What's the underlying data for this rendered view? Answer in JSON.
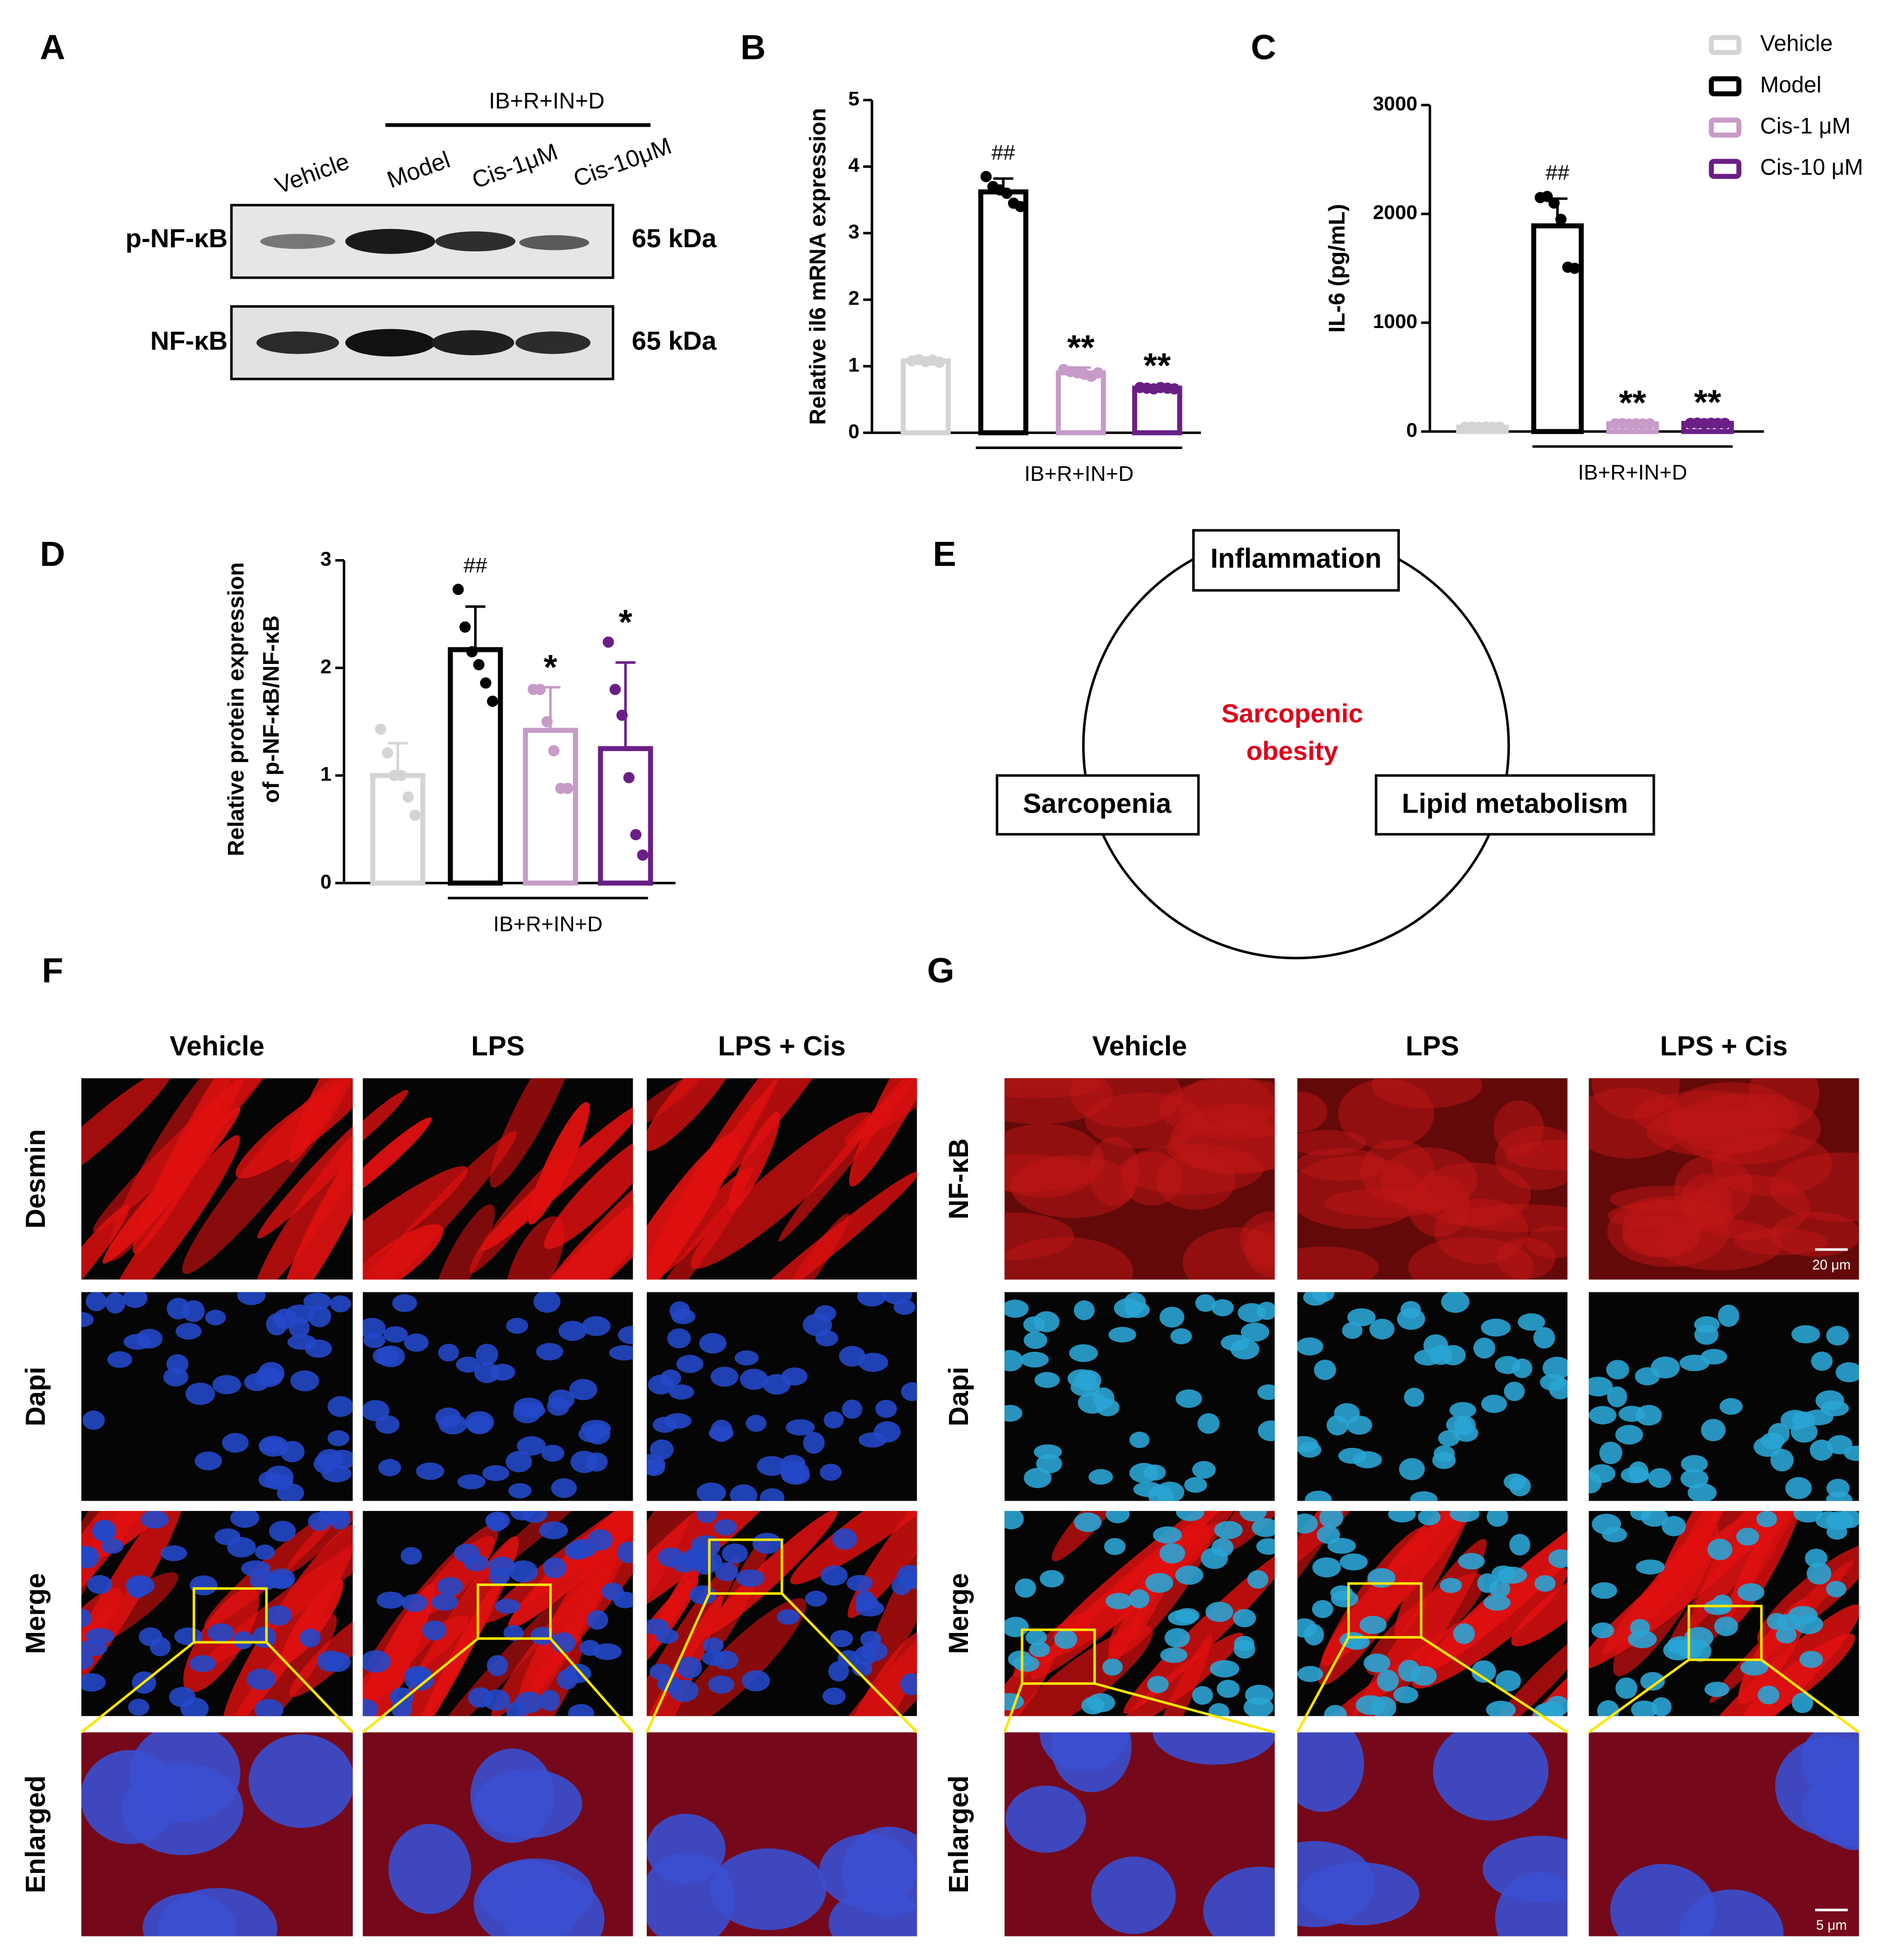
{
  "panel_a": {
    "label": "A",
    "group_label": "IB+R+IN+D",
    "lanes": [
      "Vehicle",
      "Model",
      "Cis-1μM",
      "Cis-10μM"
    ],
    "rows": [
      {
        "protein": "p-NF-κB",
        "size": "65 kDa"
      },
      {
        "protein": "NF-κB",
        "size": "65 kDa"
      }
    ]
  },
  "legend": [
    {
      "name": "Vehicle",
      "color": "#d4d4d4"
    },
    {
      "name": "Model",
      "color": "#000000"
    },
    {
      "name": "Cis-1 μM",
      "color": "#c79ac7"
    },
    {
      "name": "Cis-10 μM",
      "color": "#6a1f86"
    }
  ],
  "chart_data": [
    {
      "type": "bar",
      "panel": "B",
      "y_label": "Relative il6 mRNA expression",
      "group_label": "IB+R+IN+D",
      "values": [
        1.08,
        3.62,
        0.9,
        0.67
      ],
      "errors": [
        0.03,
        0.2,
        0.08,
        0.04
      ],
      "points": [
        [
          1.08,
          1.1,
          1.07,
          1.09,
          1.06
        ],
        [
          3.85,
          3.7,
          3.65,
          3.6,
          3.45,
          3.4
        ],
        [
          0.95,
          0.92,
          0.9,
          0.88,
          0.85,
          0.9
        ],
        [
          0.68,
          0.67,
          0.66,
          0.68,
          0.67,
          0.66
        ]
      ],
      "annotations": [
        null,
        "##",
        "**",
        "**"
      ],
      "ylim": [
        0,
        5
      ],
      "yticks": [
        0,
        1,
        2,
        3,
        4,
        5
      ]
    },
    {
      "type": "bar",
      "panel": "C",
      "y_label": "IL-6 (pg/mL)",
      "group_label": "IB+R+IN+D",
      "values": [
        40,
        1890,
        70,
        75
      ],
      "errors": [
        5,
        250,
        10,
        10
      ],
      "points": [
        [
          40,
          42,
          38,
          41,
          39,
          40
        ],
        [
          2150,
          2160,
          2100,
          1950,
          1510,
          1500
        ],
        [
          70,
          72,
          68,
          71,
          69,
          70
        ],
        [
          75,
          77,
          73,
          76,
          74,
          75
        ]
      ],
      "annotations": [
        null,
        "##",
        "**",
        "**"
      ],
      "ylim": [
        0,
        3000
      ],
      "yticks": [
        0,
        1000,
        2000,
        3000
      ]
    },
    {
      "type": "bar",
      "panel": "D",
      "y_label": [
        "Relative protein expression",
        "of p-NF-κB/NF-κB"
      ],
      "group_label": "IB+R+IN+D",
      "values": [
        1.0,
        2.17,
        1.42,
        1.25
      ],
      "errors": [
        0.3,
        0.4,
        0.4,
        0.8
      ],
      "points": [
        [
          1.43,
          1.21,
          1.0,
          1.0,
          0.8,
          0.63
        ],
        [
          2.73,
          2.38,
          2.15,
          2.03,
          1.86,
          1.69
        ],
        [
          1.8,
          1.8,
          1.5,
          1.23,
          0.88,
          0.88
        ],
        [
          2.24,
          1.8,
          1.56,
          0.98,
          0.45,
          0.26
        ]
      ],
      "annotations": [
        null,
        "##",
        "*",
        "*"
      ],
      "ylim": [
        0,
        3
      ],
      "yticks": [
        0,
        1,
        2,
        3
      ]
    }
  ],
  "panel_e": {
    "label": "E",
    "center": [
      "Sarcopenic",
      "obesity"
    ],
    "nodes": [
      "Inflammation",
      "Sarcopenia",
      "Lipid metabolism"
    ]
  },
  "panel_f": {
    "label": "F",
    "columns": [
      "Vehicle",
      "LPS",
      "LPS + Cis"
    ],
    "rows": [
      "Desmin",
      "Dapi",
      "Merge",
      "Enlarged"
    ]
  },
  "panel_g": {
    "label": "G",
    "columns": [
      "Vehicle",
      "LPS",
      "LPS + Cis"
    ],
    "rows": [
      "NF-κB",
      "Dapi",
      "Merge",
      "Enlarged"
    ],
    "scale_bars": [
      "20 μm",
      "5 μm"
    ]
  }
}
